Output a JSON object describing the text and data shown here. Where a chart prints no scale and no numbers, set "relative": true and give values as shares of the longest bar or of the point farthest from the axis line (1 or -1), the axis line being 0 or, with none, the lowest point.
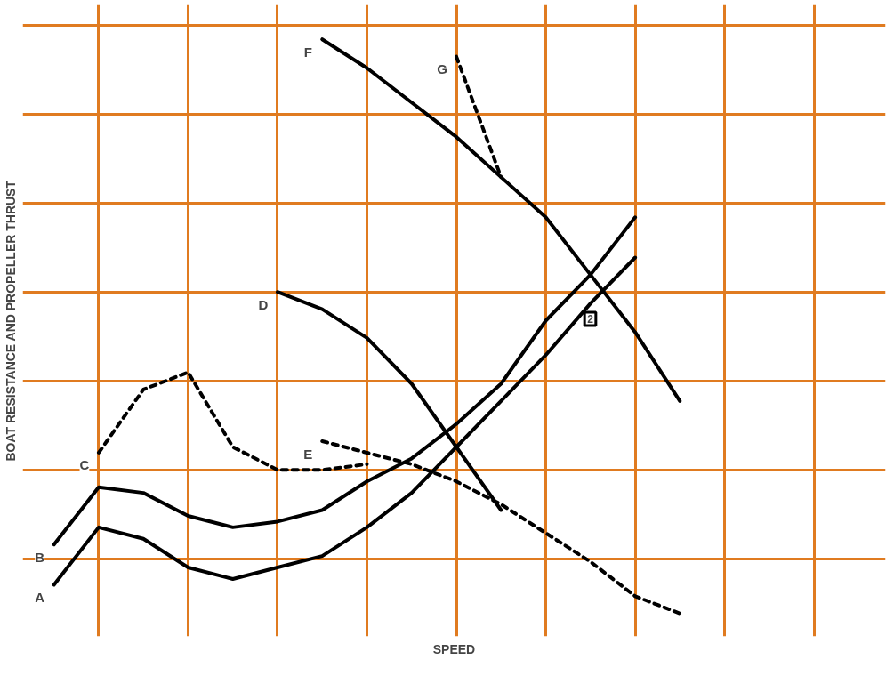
{
  "chart_data": {
    "type": "line",
    "relative": true,
    "xlabel": "SPEED",
    "ylabel": "BOAT RESISTANCE AND PROPELLER THRUST",
    "grid": true,
    "categories": [
      null,
      null,
      null,
      null,
      null,
      null,
      null,
      null,
      null,
      null,
      null,
      null,
      null,
      null,
      null
    ],
    "series": [
      {
        "name": "A",
        "color": "#000000",
        "line_style": "solid",
        "values": [
          0.05,
          0.15,
          0.13,
          0.08,
          0.06,
          0.08,
          0.1,
          0.15,
          0.21,
          0.29,
          0.37,
          0.45,
          0.54,
          0.62,
          null
        ]
      },
      {
        "name": "B",
        "color": "#000000",
        "line_style": "solid",
        "values": [
          0.12,
          0.22,
          0.21,
          0.17,
          0.15,
          0.16,
          0.18,
          0.23,
          0.27,
          0.33,
          0.4,
          0.51,
          0.59,
          0.69,
          null
        ]
      },
      {
        "name": "C",
        "color": "#000000",
        "line_style": "dashed",
        "values": [
          null,
          0.28,
          0.39,
          0.42,
          0.29,
          0.25,
          0.25,
          0.26,
          null,
          null,
          null,
          null,
          null,
          null,
          null
        ]
      },
      {
        "name": "D",
        "color": "#000000",
        "line_style": "solid",
        "values": [
          null,
          null,
          null,
          null,
          null,
          0.56,
          0.53,
          0.48,
          0.4,
          0.29,
          0.18,
          null,
          null,
          null,
          null
        ]
      },
      {
        "name": "E",
        "color": "#000000",
        "line_style": "dashed",
        "values": [
          null,
          null,
          null,
          null,
          null,
          null,
          0.3,
          0.28,
          0.26,
          0.23,
          0.19,
          0.14,
          0.09,
          0.03,
          0
        ]
      },
      {
        "name": "F",
        "color": "#000000",
        "line_style": "solid",
        "values": [
          null,
          null,
          null,
          null,
          null,
          null,
          1.0,
          0.95,
          0.89,
          0.83,
          0.76,
          0.69,
          0.59,
          0.49,
          0.37
        ]
      },
      {
        "name": "G",
        "color": "#000000",
        "line_style": "dashed",
        "values": [
          null,
          null,
          null,
          null,
          null,
          null,
          null,
          null,
          null,
          0.97,
          0.76,
          null,
          null,
          null,
          null
        ]
      }
    ],
    "annotations": [
      "2"
    ]
  }
}
